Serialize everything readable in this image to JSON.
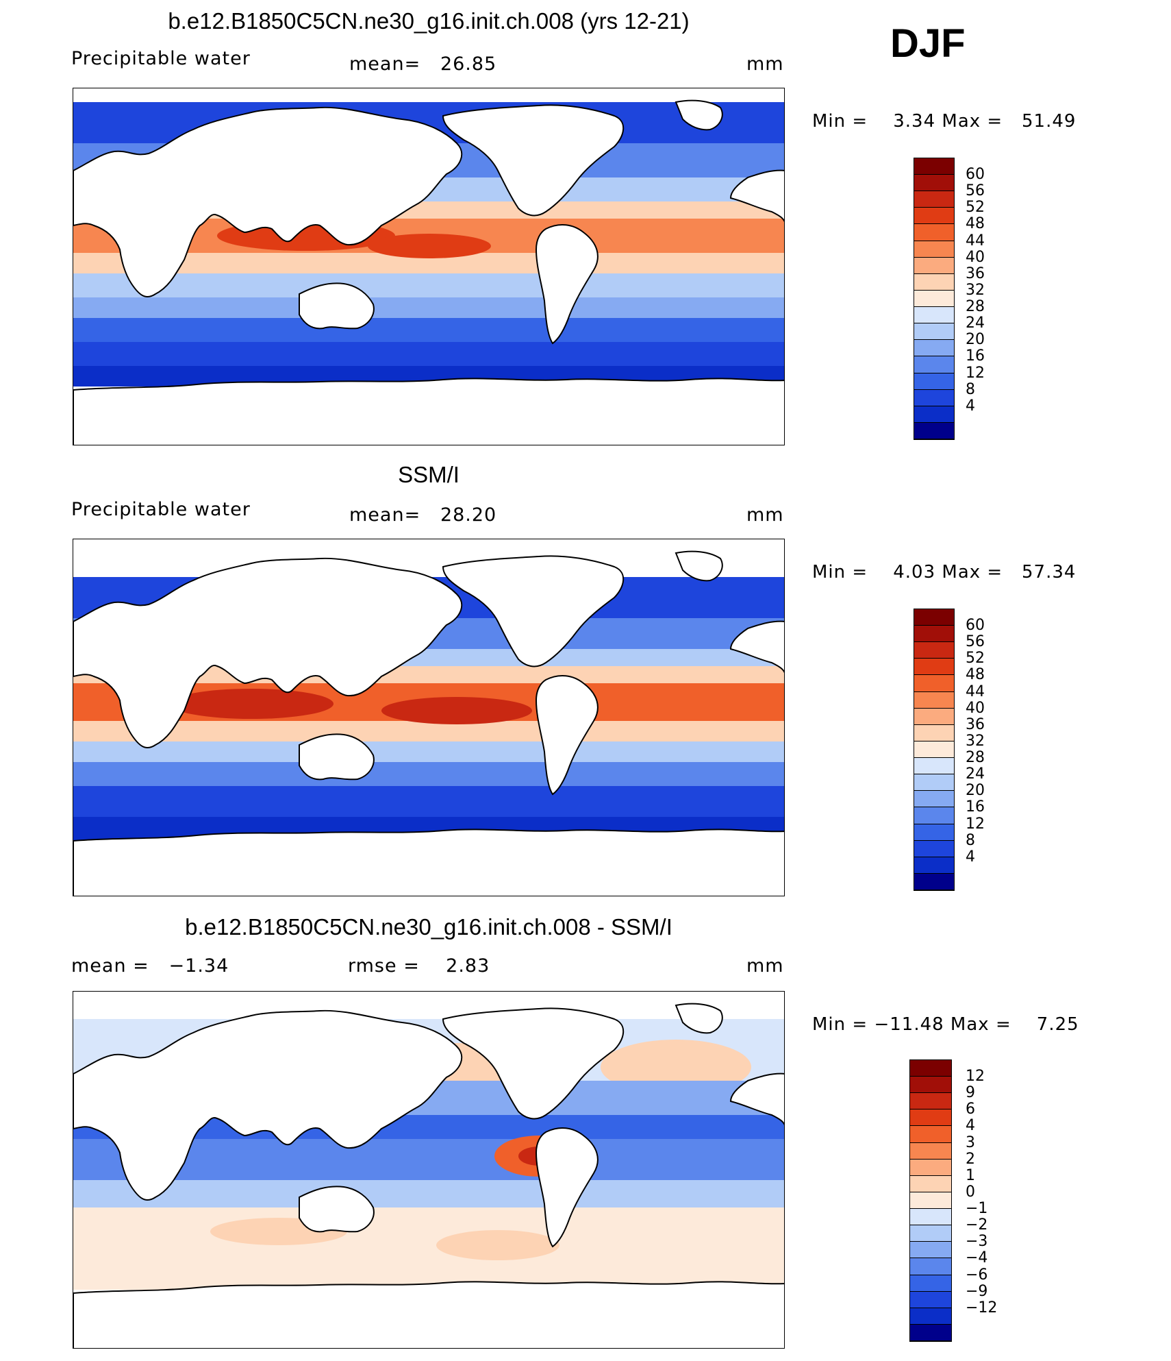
{
  "season": "DJF",
  "colors": {
    "wet": [
      "#1e3cdc",
      "#2b55e8",
      "#4a78ee",
      "#7aa0f2",
      "#a8c2f6",
      "#d4e3fb",
      "#fde7d4",
      "#fcc39f",
      "#fb9a6b",
      "#f4703d",
      "#e8451a",
      "#c92812",
      "#a10f08",
      "#7b0000"
    ],
    "dry": [
      "#00008b",
      "#0018a8",
      "#0a2fd0"
    ]
  },
  "chart_data": [
    {
      "type": "heatmap",
      "title": "b.e12.B1850C5CN.ne30_g16.init.ch.008 (yrs 12-21)",
      "left_label": "Precipitable water",
      "center_label": "mean=   26.85",
      "right_label": "mm",
      "min_max": "Min =    3.34 Max =   51.49",
      "colorbar_levels": [
        "60",
        "56",
        "52",
        "48",
        "44",
        "40",
        "36",
        "32",
        "28",
        "24",
        "20",
        "16",
        "12",
        "8",
        "4"
      ],
      "colorbar_colors": [
        "#7b0000",
        "#a10f08",
        "#c92812",
        "#e03c14",
        "#f0602a",
        "#f78650",
        "#fbab7f",
        "#fdd3b4",
        "#fdeada",
        "#d8e6fb",
        "#b1ccf7",
        "#86aaf2",
        "#5b86ec",
        "#3564e6",
        "#1e45dc",
        "#0b2ec8",
        "#00008b"
      ]
    },
    {
      "type": "heatmap",
      "title": "SSM/I",
      "left_label": "Precipitable water",
      "center_label": "mean=   28.20",
      "right_label": "mm",
      "min_max": "Min =    4.03 Max =   57.34",
      "colorbar_levels": [
        "60",
        "56",
        "52",
        "48",
        "44",
        "40",
        "36",
        "32",
        "28",
        "24",
        "20",
        "16",
        "12",
        "8",
        "4"
      ],
      "colorbar_colors": [
        "#7b0000",
        "#a10f08",
        "#c92812",
        "#e03c14",
        "#f0602a",
        "#f78650",
        "#fbab7f",
        "#fdd3b4",
        "#fdeada",
        "#d8e6fb",
        "#b1ccf7",
        "#86aaf2",
        "#5b86ec",
        "#3564e6",
        "#1e45dc",
        "#0b2ec8",
        "#00008b"
      ]
    },
    {
      "type": "heatmap",
      "title": "b.e12.B1850C5CN.ne30_g16.init.ch.008 - SSM/I",
      "left_label": "mean =   −1.34",
      "center_label": "rmse =    2.83",
      "right_label": "mm",
      "min_max": "Min = −11.48 Max =    7.25",
      "colorbar_levels": [
        "12",
        "9",
        "6",
        "4",
        "3",
        "2",
        "1",
        "0",
        "−1",
        "−2",
        "−3",
        "−4",
        "−6",
        "−9",
        "−12"
      ],
      "colorbar_colors": [
        "#7b0000",
        "#a10f08",
        "#c92812",
        "#e03c14",
        "#f0602a",
        "#f78650",
        "#fbab7f",
        "#fdd3b4",
        "#fdeada",
        "#d8e6fb",
        "#b1ccf7",
        "#86aaf2",
        "#5b86ec",
        "#3564e6",
        "#1e45dc",
        "#0b2ec8",
        "#00008b"
      ]
    }
  ]
}
